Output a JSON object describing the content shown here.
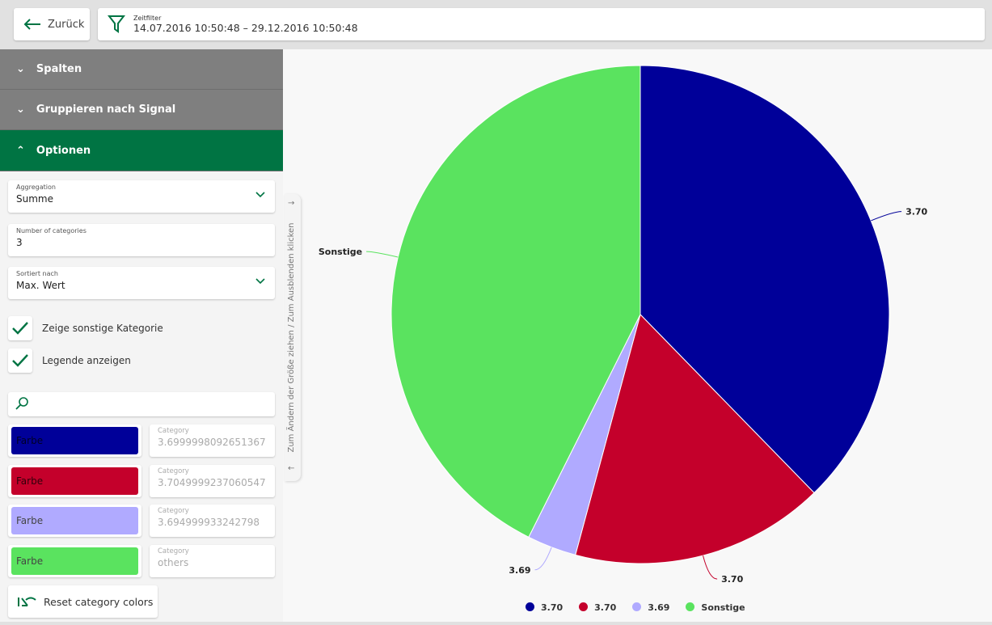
{
  "header": {
    "back_label": "Zurück",
    "filter_label": "Zeitfilter",
    "filter_value": "14.07.2016 10:50:48 – 29.12.2016 10:50:48"
  },
  "sidebar": {
    "sections": [
      {
        "label": "Spalten",
        "expanded": false
      },
      {
        "label": "Gruppieren nach Signal",
        "expanded": false
      },
      {
        "label": "Optionen",
        "expanded": true
      }
    ],
    "aggregation": {
      "label": "Aggregation",
      "value": "Summe"
    },
    "num_categories": {
      "label": "Number of categories",
      "value": "3"
    },
    "sort": {
      "label": "Sortiert nach",
      "value": "Max. Wert"
    },
    "show_other": {
      "label": "Zeige sonstige Kategorie",
      "checked": true
    },
    "show_legend": {
      "label": "Legende anzeigen",
      "checked": true
    },
    "search": {
      "placeholder": ""
    },
    "color_label": "Farbe",
    "category_label": "Category",
    "categories": [
      {
        "color": "#000099",
        "value": "3.6999998092651367"
      },
      {
        "color": "#c4002b",
        "value": "3.7049999237060547"
      },
      {
        "color": "#b0aaff",
        "value": "3.694999933242798"
      },
      {
        "color": "#5ae35f",
        "value": "others"
      }
    ],
    "reset_label": "Reset category colors",
    "resize_hint": "Zum Ändern der Größe ziehen / Zum Ausblenden klicken"
  },
  "chart_data": {
    "type": "pie",
    "slices": [
      {
        "label": "3.70",
        "share": 37.7,
        "color": "#000099"
      },
      {
        "label": "3.70",
        "share": 16.5,
        "color": "#c4002b"
      },
      {
        "label": "3.69",
        "share": 3.2,
        "color": "#b0aaff"
      },
      {
        "label": "Sonstige",
        "share": 42.6,
        "color": "#5ae35f"
      }
    ],
    "legend": "bottom"
  }
}
